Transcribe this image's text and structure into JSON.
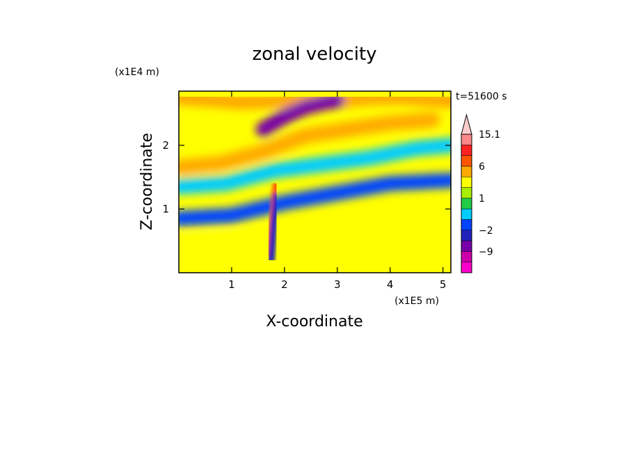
{
  "chart_data": {
    "type": "heatmap",
    "title": "zonal velocity",
    "xlabel": "X-coordinate",
    "ylabel": "Z-coordinate",
    "x_unit": "(x1E5 m)",
    "y_unit": "(x1E4 m)",
    "time_label": "t=51600 s",
    "xlim": [
      0,
      5.15
    ],
    "ylim": [
      0,
      2.85
    ],
    "x_ticks": [
      "1",
      "2",
      "3",
      "4",
      "5"
    ],
    "y_ticks": [
      "1",
      "2"
    ],
    "colorbar": {
      "labels": [
        "15.1",
        "6",
        "1",
        "-2",
        "-9"
      ],
      "levels": [
        -13,
        -9,
        -6,
        -2,
        -1,
        0,
        1,
        2,
        3,
        6,
        9,
        12,
        15.1
      ],
      "colors": [
        "#ff00cc",
        "#cc00aa",
        "#7700aa",
        "#2222bb",
        "#0044ff",
        "#00ccff",
        "#22cc44",
        "#aaee00",
        "#ffff00",
        "#ffaa00",
        "#ff5500",
        "#ff2222",
        "#ff8888",
        "#ffcccc"
      ],
      "extend_max": true
    },
    "bands": [
      {
        "x": [
          0,
          0.6,
          1.2,
          1.8,
          2.4,
          3.0,
          3.6,
          4.2,
          4.8,
          5.15
        ],
        "z": [
          2.75,
          2.72,
          2.68,
          2.7,
          2.73,
          2.7,
          2.75,
          2.76,
          2.72,
          2.7
        ],
        "value": 4
      },
      {
        "x": [
          1.6,
          2.0,
          2.4,
          2.8,
          3.0
        ],
        "z": [
          2.25,
          2.45,
          2.6,
          2.68,
          2.7
        ],
        "value": -7
      },
      {
        "x": [
          0,
          0.8,
          1.6,
          2.4,
          3.2,
          4.0,
          4.8
        ],
        "z": [
          1.65,
          1.72,
          1.9,
          2.15,
          2.25,
          2.35,
          2.4
        ],
        "value": 4
      },
      {
        "x": [
          0,
          0.9,
          1.8,
          2.7,
          3.6,
          4.5,
          5.15
        ],
        "z": [
          1.35,
          1.4,
          1.6,
          1.7,
          1.8,
          1.95,
          2.0
        ],
        "value": -1
      },
      {
        "x": [
          0,
          1.0,
          2.0,
          3.0,
          4.0,
          5.15
        ],
        "z": [
          0.85,
          0.9,
          1.1,
          1.25,
          1.4,
          1.45
        ],
        "value": -1.5
      },
      {
        "x": [
          0,
          1.0,
          2.0,
          3.0,
          4.0,
          5.15
        ],
        "z": [
          0.45,
          0.5,
          0.55,
          0.65,
          0.75,
          0.8
        ],
        "value": 2
      },
      {
        "x": [
          1.7,
          1.75,
          1.8,
          1.85
        ],
        "z": [
          0.3,
          0.7,
          1.1,
          1.4
        ],
        "value": 8
      },
      {
        "x": [
          1.75,
          1.8,
          1.85
        ],
        "z": [
          0.2,
          0.8,
          1.2
        ],
        "value": -6
      }
    ]
  }
}
